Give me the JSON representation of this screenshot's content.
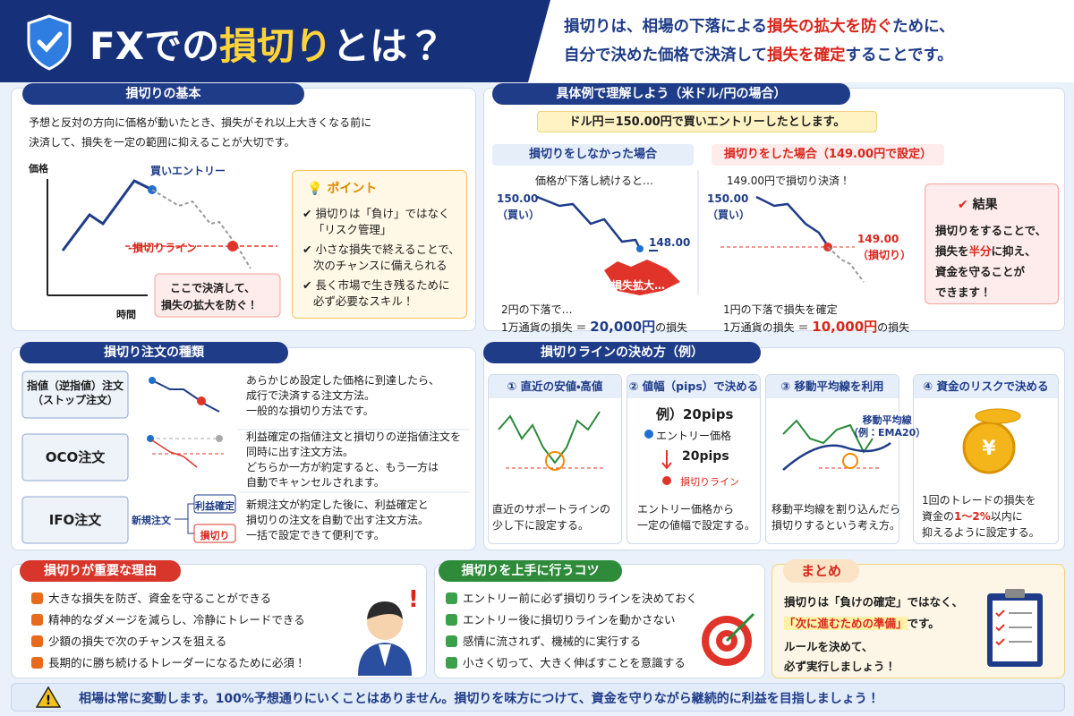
{
  "header": {
    "title_a": "FXでの",
    "title_b": "損切り",
    "title_c": "とは？",
    "desc": [
      [
        "損切りは、相場の下落による",
        "損失の拡大を防ぐ",
        "ために、"
      ],
      [
        "自分で決めた価格で決済して",
        "損失を確定",
        "することです。"
      ]
    ]
  },
  "basics": {
    "title": "損切りの基本",
    "text": [
      "予想と反対の方向に価格が動いたとき、損失がそれ以上大きくなる前に",
      "決済して、損失を一定の範囲に抑えることが大切です。"
    ],
    "chart": {
      "y_label": "価格",
      "x_label": "時間",
      "entry": "買いエントリー",
      "stop": "-損切りライン",
      "note": [
        "ここで決済して、",
        "損失の拡大を防ぐ！"
      ]
    },
    "point": {
      "title": "ポイント",
      "items": [
        [
          "損切りは「負け」ではなく",
          "「リスク管理」"
        ],
        [
          "小さな損失で終えることで、",
          "次のチャンスに備えられる"
        ],
        [
          "長く市場で生き残るために",
          "必ず必要なスキル！"
        ]
      ]
    }
  },
  "example": {
    "title": "具体例で理解しよう（米ドル/円の場合）",
    "premise": "ドル円＝150.00円で買いエントリーしたとします。",
    "no_stop": {
      "title": "損切りをしなかった場合",
      "caption": "価格が下落し続けると…",
      "start": "150.00",
      "start_sub": "（買い）",
      "end": "148.00",
      "burst": "損失拡大…",
      "line": "2円の下落で…",
      "loss": [
        "1万通貨の損失 ＝ ",
        "20,000円",
        "の損失"
      ]
    },
    "stop": {
      "title": "損切りをした場合（149.00円で設定）",
      "caption": "149.00円で損切り決済！",
      "start": "150.00",
      "start_sub": "（買い）",
      "level": "149.00",
      "level_sub": "（損切り）",
      "line": "1円の下落で損失を確定",
      "loss": [
        "1万通貨の損失 ＝ ",
        "10,000円",
        "の損失"
      ]
    },
    "result": {
      "title": "結果",
      "lines": [
        [
          "損切りをすることで、"
        ],
        [
          "損失を",
          "半分",
          "に抑え、"
        ],
        [
          "資金を守ることが"
        ],
        [
          "できます！"
        ]
      ]
    }
  },
  "orders": {
    "title": "損切り注文の種類",
    "rows": [
      {
        "name": [
          "指値（逆指値）注文",
          "（ストップ注文）"
        ],
        "desc": [
          "あらかじめ設定した価格に到達したら、",
          "成行で決済する注文方法。",
          "一般的な損切り方法です。"
        ]
      },
      {
        "name": [
          "OCO注文"
        ],
        "desc": [
          "利益確定の指値注文と損切りの逆指値注文を",
          "同時に出す注文方法。",
          "どちらか一方が約定すると、もう一方は",
          "自動でキャンセルされます。"
        ]
      },
      {
        "name": [
          "IFO注文"
        ],
        "desc": [
          "新規注文が約定した後に、利益確定と",
          "損切りの注文を自動で出す注文方法。",
          "一括で設定できて便利です。"
        ],
        "diagram": {
          "new": "新規注文",
          "take": "利益確定",
          "stop": "損切り"
        }
      }
    ]
  },
  "methods": {
    "title": "損切りラインの決め方（例）",
    "cards": [
      {
        "title": "① 直近の安値・高値",
        "desc": [
          "直近のサポートラインの",
          "少し下に設定する。"
        ]
      },
      {
        "title": "② 値幅（pips）で決める",
        "example": "例）20pips",
        "entry": "エントリー価格",
        "width": "20pips",
        "stop": "損切りライン",
        "desc": [
          "エントリー価格から",
          "一定の値幅で設定する。"
        ]
      },
      {
        "title": "③ 移動平均線を利用",
        "label": [
          "移動平均線",
          "（例：EMA20）"
        ],
        "desc": [
          "移動平均線を割り込んだら",
          "損切りするという考え方。"
        ]
      },
      {
        "title": "④ 資金のリスクで決める",
        "desc": [
          [
            "1回のトレードの損失を"
          ],
          [
            "資金の",
            "1～2%",
            "以内に"
          ],
          [
            "抑えるように設定する。"
          ]
        ]
      }
    ]
  },
  "reasons": {
    "title": "損切りが重要な理由",
    "items": [
      "大きな損失を防ぎ、資金を守ることができる",
      "精神的なダメージを減らし、冷静にトレードできる",
      "少額の損失で次のチャンスを狙える",
      "長期的に勝ち続けるトレーダーになるために必須！"
    ]
  },
  "tips": {
    "title": "損切りを上手に行うコツ",
    "items": [
      "エントリー前に必ず損切りラインを決めておく",
      "エントリー後に損切りラインを動かさない",
      "感情に流されず、機械的に実行する",
      "小さく切って、大きく伸ばすことを意識する"
    ]
  },
  "summary": {
    "title": "まとめ",
    "lines": [
      [
        "損切りは「負けの確定」ではなく、"
      ],
      [
        "「次に進むための準備」",
        "です。"
      ],
      [
        "ルールを決めて、"
      ],
      [
        "必ず実行しましょう！"
      ]
    ]
  },
  "footer": "相場は常に変動します。100%予想通りにいくことはありません。損切りを味方につけて、資金を守りながら継続的に利益を目指しましょう！"
}
